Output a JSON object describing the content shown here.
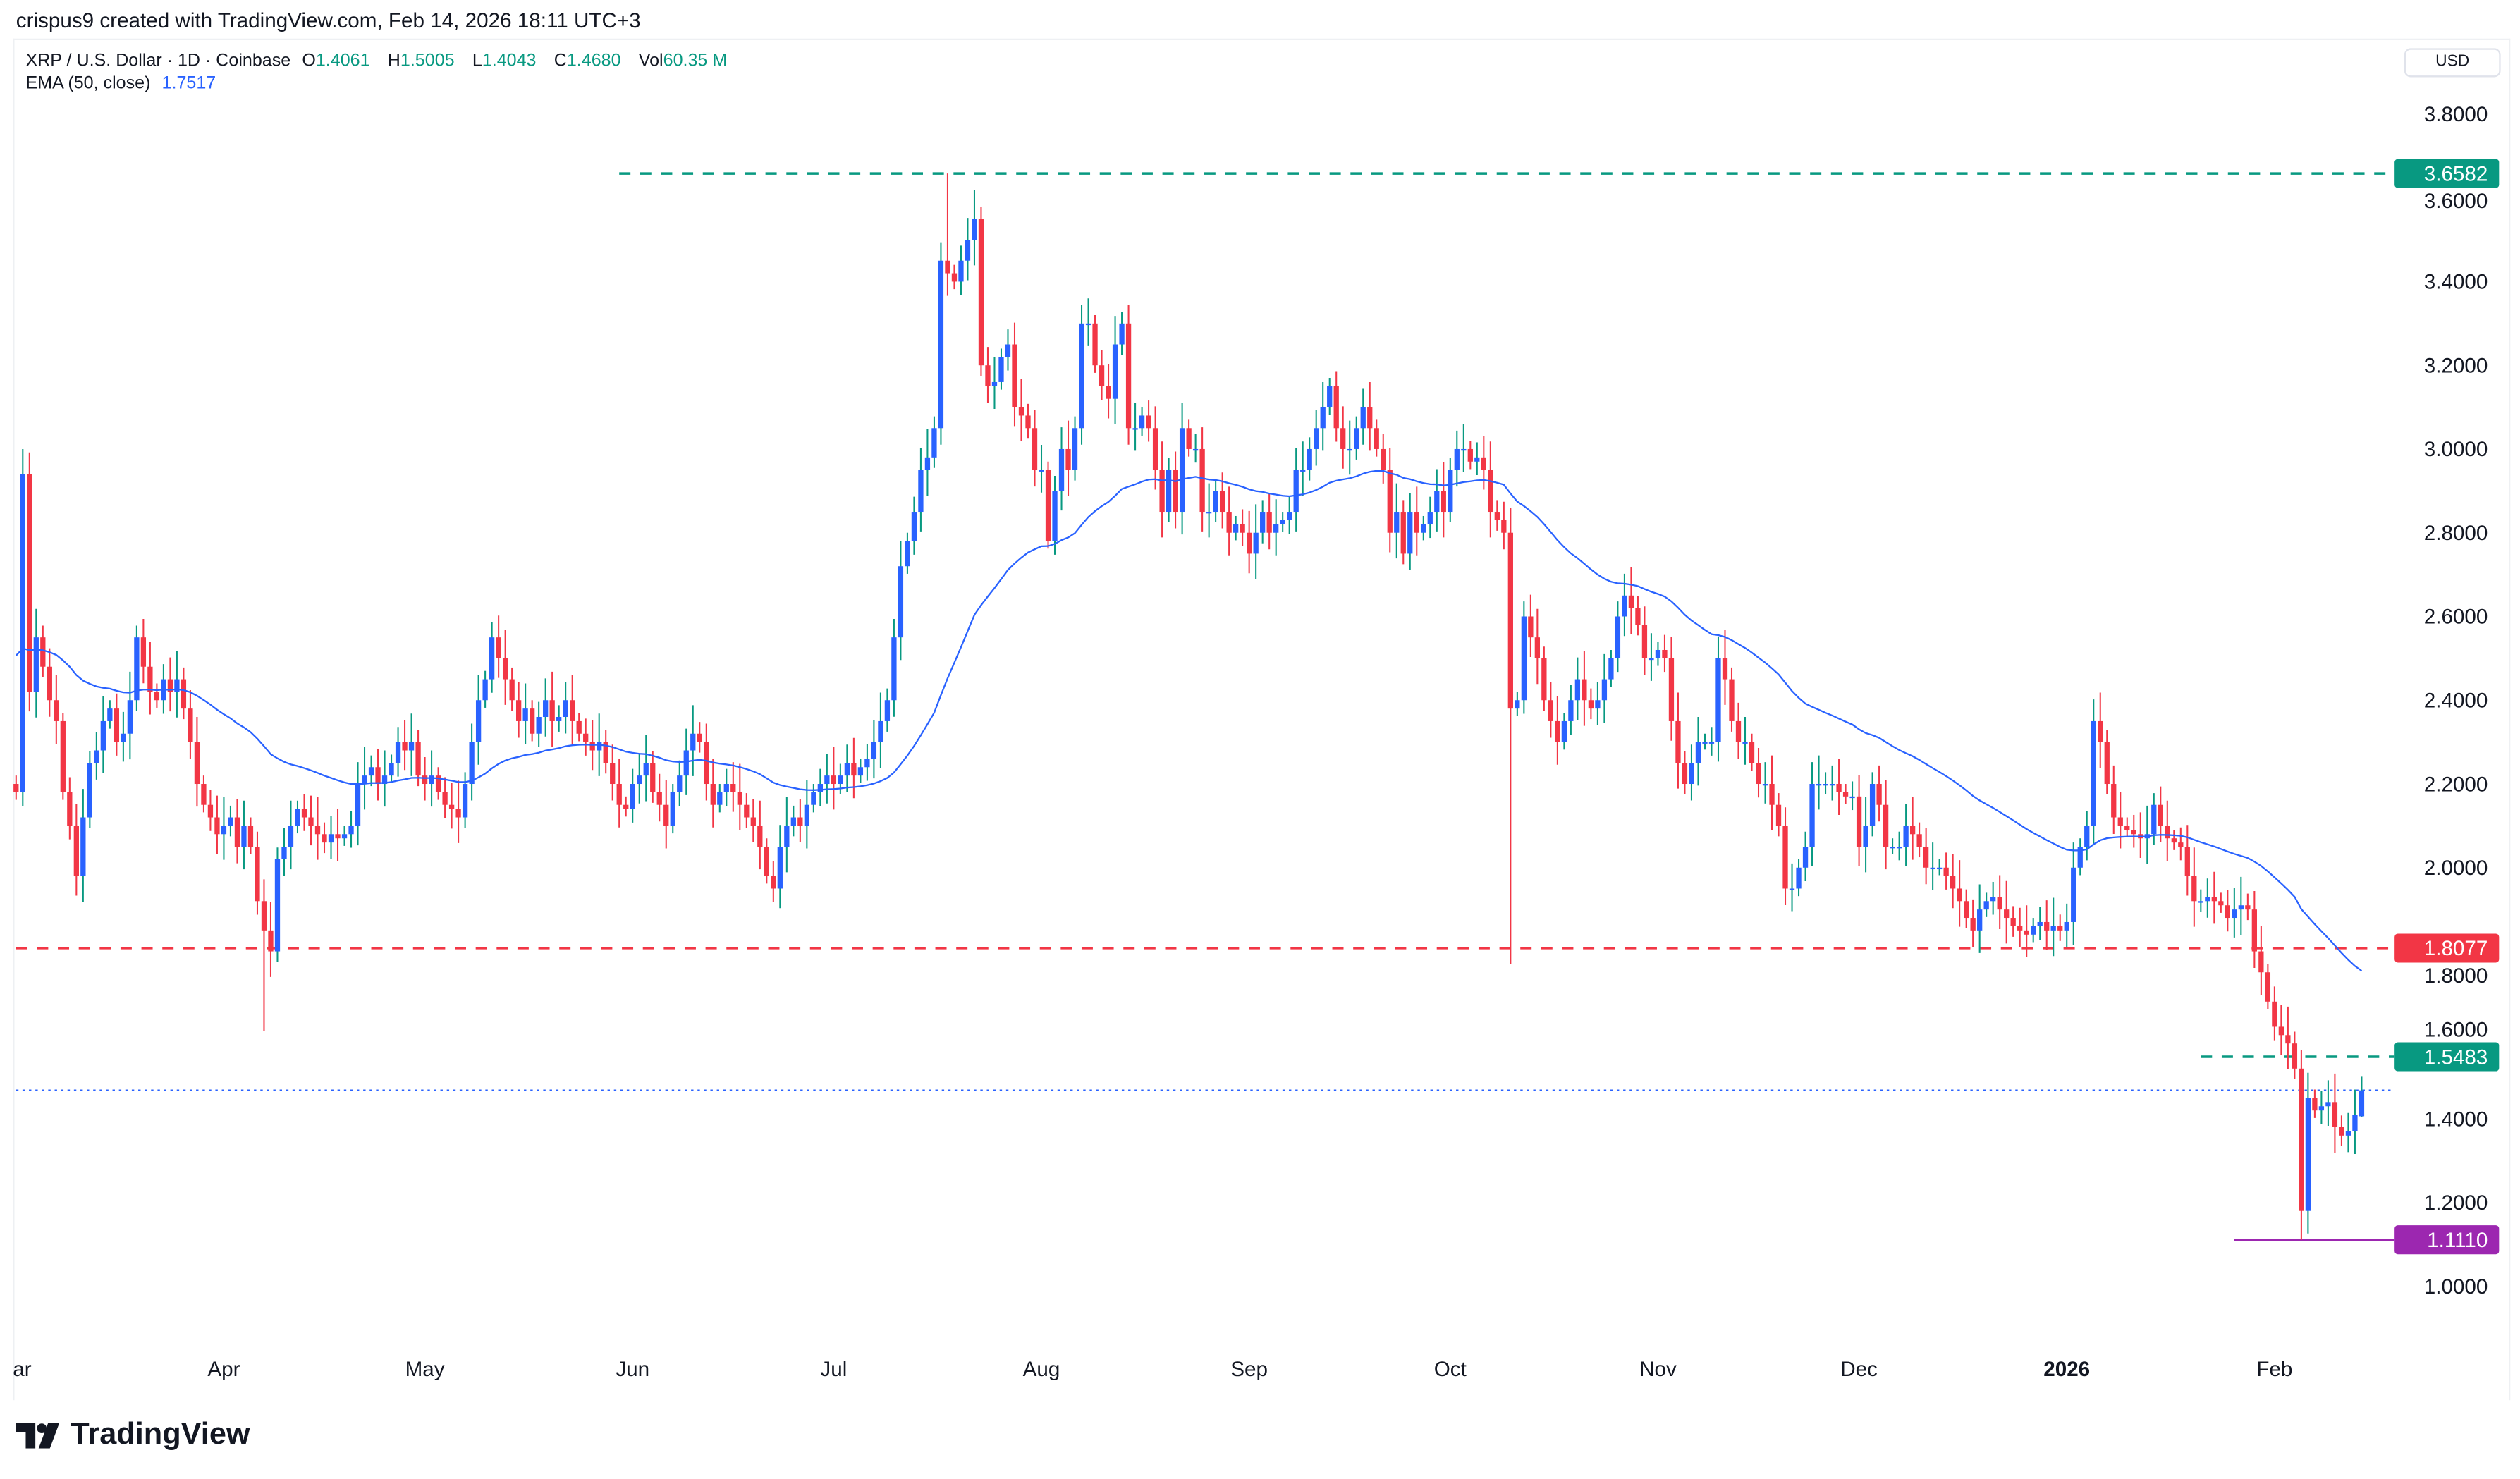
{
  "credit": "crispus9 created with TradingView.com, Feb 14, 2026 18:11 UTC+3",
  "legend": {
    "symbol": "XRP / U.S. Dollar · 1D · Coinbase",
    "o_label": "O",
    "o": "1.4061",
    "h_label": "H",
    "h": "1.5005",
    "l_label": "L",
    "l": "1.4043",
    "c_label": "C",
    "c": "1.4680",
    "vol_label": "Vol",
    "vol": "60.35 M",
    "ema_label": "EMA (50, close)",
    "ema": "1.7517"
  },
  "currency": "USD",
  "logo_text": "TradingView",
  "colors": {
    "up_body": "#2962ff",
    "up_wick": "#089981",
    "down": "#f23645",
    "ema": "#2962ff",
    "teal": "#089981",
    "red": "#f23645",
    "purple": "#9c27b0"
  },
  "chart_data": {
    "type": "candlestick",
    "ylim": [
      0.95,
      3.85
    ],
    "y_ticks": [
      "3.8000",
      "3.6000",
      "3.4000",
      "3.2000",
      "3.0000",
      "2.8000",
      "2.6000",
      "2.4000",
      "2.2000",
      "2.0000",
      "1.8000",
      "1.6000",
      "1.4000",
      "1.2000",
      "1.0000"
    ],
    "x_ticks": [
      {
        "label": "ar",
        "date": "2025-03-01"
      },
      {
        "label": "Apr",
        "date": "2025-04-01"
      },
      {
        "label": "May",
        "date": "2025-05-01"
      },
      {
        "label": "Jun",
        "date": "2025-06-01"
      },
      {
        "label": "Jul",
        "date": "2025-07-01"
      },
      {
        "label": "Aug",
        "date": "2025-08-01"
      },
      {
        "label": "Sep",
        "date": "2025-09-01"
      },
      {
        "label": "Oct",
        "date": "2025-10-01"
      },
      {
        "label": "Nov",
        "date": "2025-11-01"
      },
      {
        "label": "Dec",
        "date": "2025-12-01"
      },
      {
        "label": "2026",
        "date": "2026-01-01",
        "bold": true
      },
      {
        "label": "Feb",
        "date": "2026-02-01"
      }
    ],
    "daily_closes_by_month": {
      "2025-03": [
        2.18,
        2.94,
        2.42,
        2.55,
        2.48,
        2.4,
        2.35,
        2.18,
        2.1,
        1.98,
        2.12,
        2.25,
        2.28,
        2.35,
        2.38,
        2.3,
        2.32,
        2.4,
        2.55,
        2.48,
        2.42,
        2.4,
        2.45,
        2.42,
        2.45,
        2.38,
        2.3,
        2.2,
        2.15,
        2.12,
        2.08
      ],
      "2025-04": [
        2.1,
        2.12,
        2.05,
        2.1,
        2.05,
        1.92,
        1.85,
        1.8,
        2.02,
        2.05,
        2.1,
        2.14,
        2.12,
        2.1,
        2.08,
        2.06,
        2.08,
        2.07,
        2.08,
        2.1,
        2.2,
        2.22,
        2.24,
        2.2,
        2.22,
        2.25,
        2.3,
        2.28,
        2.3,
        2.22
      ],
      "2025-05": [
        2.2,
        2.22,
        2.18,
        2.15,
        2.14,
        2.12,
        2.2,
        2.3,
        2.4,
        2.45,
        2.55,
        2.5,
        2.45,
        2.4,
        2.35,
        2.38,
        2.32,
        2.36,
        2.4,
        2.35,
        2.36,
        2.4,
        2.35,
        2.32,
        2.3,
        2.28,
        2.3,
        2.25,
        2.2,
        2.15,
        2.14
      ],
      "2025-06": [
        2.2,
        2.22,
        2.25,
        2.18,
        2.15,
        2.1,
        2.18,
        2.22,
        2.28,
        2.32,
        2.3,
        2.2,
        2.15,
        2.18,
        2.2,
        2.18,
        2.15,
        2.12,
        2.1,
        2.05,
        1.98,
        1.95,
        2.05,
        2.1,
        2.12,
        2.1,
        2.15,
        2.18,
        2.2,
        2.22
      ],
      "2025-07": [
        2.2,
        2.22,
        2.25,
        2.22,
        2.24,
        2.26,
        2.3,
        2.35,
        2.4,
        2.55,
        2.72,
        2.78,
        2.85,
        2.95,
        2.98,
        3.05,
        3.45,
        3.42,
        3.4,
        3.45,
        3.5,
        3.55,
        3.2,
        3.15,
        3.16,
        3.22,
        3.25,
        3.1,
        3.08,
        3.05,
        2.95
      ],
      "2025-08": [
        2.95,
        2.78,
        2.9,
        3.0,
        2.95,
        3.05,
        3.3,
        3.3,
        3.2,
        3.15,
        3.12,
        3.25,
        3.3,
        3.05,
        3.05,
        3.08,
        3.05,
        2.95,
        2.85,
        2.95,
        2.85,
        3.05,
        3.0,
        3.0,
        2.85,
        2.85,
        2.9,
        2.85,
        2.8,
        2.82,
        2.8
      ],
      "2025-09": [
        2.75,
        2.8,
        2.85,
        2.8,
        2.82,
        2.83,
        2.85,
        2.95,
        2.95,
        3.0,
        3.05,
        3.1,
        3.15,
        3.05,
        3.0,
        3.0,
        3.05,
        3.1,
        3.05,
        3.0,
        2.95,
        2.8,
        2.85,
        2.75,
        2.85,
        2.8,
        2.82,
        2.85,
        2.9,
        2.85
      ],
      "2025-10": [
        2.95,
        3.0,
        3.0,
        2.97,
        2.98,
        2.95,
        2.85,
        2.83,
        2.8,
        2.38,
        2.4,
        2.6,
        2.55,
        2.5,
        2.4,
        2.35,
        2.3,
        2.35,
        2.4,
        2.45,
        2.4,
        2.38,
        2.4,
        2.45,
        2.5,
        2.6,
        2.65,
        2.62,
        2.58,
        2.5,
        2.5
      ],
      "2025-11": [
        2.52,
        2.5,
        2.35,
        2.25,
        2.2,
        2.25,
        2.3,
        2.3,
        2.3,
        2.5,
        2.45,
        2.35,
        2.3,
        2.3,
        2.25,
        2.2,
        2.2,
        2.15,
        2.1,
        1.95,
        1.95,
        2.0,
        2.05,
        2.2,
        2.2,
        2.2,
        2.2,
        2.18,
        2.17,
        2.17
      ],
      "2025-12": [
        2.05,
        2.1,
        2.2,
        2.15,
        2.05,
        2.05,
        2.05,
        2.1,
        2.08,
        2.05,
        2.0,
        2.0,
        2.0,
        1.98,
        1.95,
        1.92,
        1.88,
        1.85,
        1.9,
        1.92,
        1.93,
        1.9,
        1.88,
        1.86,
        1.85,
        1.84,
        1.86,
        1.87,
        1.85,
        1.86,
        1.85
      ],
      "2026-01": [
        1.87,
        2.0,
        2.05,
        2.1,
        2.35,
        2.3,
        2.2,
        2.12,
        2.1,
        2.09,
        2.08,
        2.07,
        2.08,
        2.15,
        2.1,
        2.07,
        2.06,
        2.05,
        1.98,
        1.92,
        1.92,
        1.93,
        1.92,
        1.91,
        1.88,
        1.9,
        1.91,
        1.9,
        1.8,
        1.75,
        1.68
      ],
      "2026-02": [
        1.62,
        1.6,
        1.58,
        1.52,
        1.18,
        1.45,
        1.42,
        1.43,
        1.44,
        1.38,
        1.36,
        1.37,
        1.41,
        1.468
      ]
    },
    "notable_extremes": [
      {
        "date": "2025-03-02",
        "high": 3.0
      },
      {
        "date": "2025-04-07",
        "low": 1.61
      },
      {
        "date": "2025-07-18",
        "high": 3.6582
      },
      {
        "date": "2025-10-10",
        "low": 1.77
      },
      {
        "date": "2026-02-05",
        "low": 1.111
      },
      {
        "date": "2026-02-14",
        "open": 1.4061,
        "high": 1.5005,
        "low": 1.4043,
        "close": 1.468
      }
    ],
    "indicator": {
      "name": "EMA (50, close)",
      "last": 1.7517
    },
    "price_lines": [
      {
        "value": 3.6582,
        "label": "3.6582",
        "style": "dashed",
        "color": "#089981",
        "from_date": "2025-05-30"
      },
      {
        "value": 1.8077,
        "label": "1.8077",
        "style": "dashed",
        "color": "#f23645",
        "from_date": "2025-03-01"
      },
      {
        "value": 1.5483,
        "label": "1.5483",
        "style": "dashed",
        "color": "#089981",
        "from_date": "2026-01-21"
      },
      {
        "value": 1.111,
        "label": "1.1110",
        "style": "solid",
        "color": "#9c27b0",
        "from_date": "2026-01-26"
      },
      {
        "value": 1.468,
        "style": "dotted",
        "color": "#2962ff",
        "from_date": "2025-03-01"
      }
    ]
  }
}
